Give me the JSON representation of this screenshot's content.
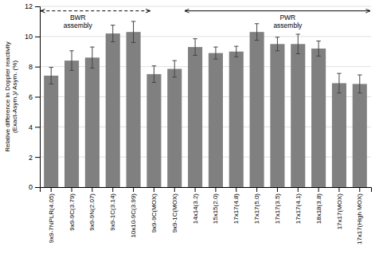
{
  "chart_data": {
    "type": "bar",
    "ylabel": "Relative difference in Doppler reactivity\n(Exact-Asym.)/ Asym. (%)",
    "categories": [
      "9x9-7NPLR(4.05)",
      "9x9-9C(3.79)",
      "9x9-9N(2.07)",
      "9x9-1C(3.14)",
      "10x10-9C(3.99)",
      "9x9-9C(MOX)",
      "9x9-1C(MOX)",
      "14x14(3.2)",
      "15x15(2.0)",
      "17x17(4.8)",
      "17x17(5.0)",
      "17x17(3.5)",
      "17x17(4.1)",
      "18x18(3.8)",
      "17x17(MOX)",
      "17x17(High MOX)"
    ],
    "values": [
      7.4,
      8.4,
      8.6,
      10.2,
      10.3,
      7.5,
      7.85,
      9.3,
      8.9,
      9.0,
      10.3,
      9.5,
      9.5,
      9.2,
      6.9,
      6.85
    ],
    "errors": [
      0.55,
      0.65,
      0.7,
      0.55,
      0.7,
      0.55,
      0.55,
      0.55,
      0.4,
      0.35,
      0.55,
      0.45,
      0.65,
      0.5,
      0.65,
      0.6
    ],
    "color": "#808080",
    "ylim": [
      0,
      12
    ],
    "yticks": [
      0,
      2,
      4,
      6,
      8,
      10,
      12
    ],
    "grid": true,
    "annotations": [
      {
        "text": "BWR\nassembly",
        "x": 1.3,
        "y": 11.7,
        "x_range": [
          -0.5,
          4.8
        ],
        "line_style": "dashed"
      },
      {
        "text": "PWR\nassembly",
        "x": 11.5,
        "y": 11.7,
        "x_range": [
          6.5,
          15.5
        ],
        "line_style": "solid"
      }
    ]
  }
}
